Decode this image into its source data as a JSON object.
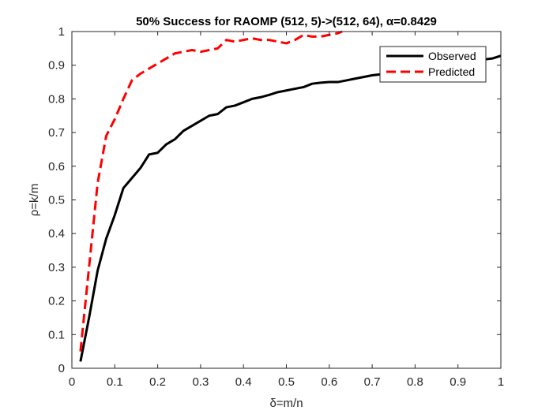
{
  "chart_data": {
    "type": "line",
    "title": "50% Success for RAOMP (512, 5)->(512, 64), α=0.8429",
    "xlabel": "δ=m/n",
    "ylabel": "ρ=k/m",
    "xlim": [
      0,
      1
    ],
    "ylim": [
      0,
      1
    ],
    "xticks": [
      0,
      0.1,
      0.2,
      0.3,
      0.4,
      0.5,
      0.6,
      0.7,
      0.8,
      0.9,
      1
    ],
    "yticks": [
      0,
      0.1,
      0.2,
      0.3,
      0.4,
      0.5,
      0.6,
      0.7,
      0.8,
      0.9,
      1
    ],
    "xtick_labels": [
      "0",
      "0.1",
      "0.2",
      "0.3",
      "0.4",
      "0.5",
      "0.6",
      "0.7",
      "0.8",
      "0.9",
      "1"
    ],
    "ytick_labels": [
      "0",
      "0.1",
      "0.2",
      "0.3",
      "0.4",
      "0.5",
      "0.6",
      "0.7",
      "0.8",
      "0.9",
      "1"
    ],
    "grid": false,
    "legend_position": "top-right",
    "series": [
      {
        "name": "Observed",
        "color": "#000000",
        "style": "solid",
        "x": [
          0.02,
          0.04,
          0.06,
          0.08,
          0.1,
          0.12,
          0.14,
          0.16,
          0.18,
          0.2,
          0.22,
          0.24,
          0.26,
          0.28,
          0.3,
          0.32,
          0.34,
          0.36,
          0.38,
          0.4,
          0.42,
          0.44,
          0.46,
          0.48,
          0.5,
          0.52,
          0.54,
          0.56,
          0.58,
          0.6,
          0.62,
          0.64,
          0.66,
          0.68,
          0.7,
          0.72,
          0.74,
          0.76,
          0.78,
          0.8,
          0.82,
          0.84,
          0.86,
          0.88,
          0.9,
          0.92,
          0.94,
          0.96,
          0.98,
          1.0
        ],
        "y": [
          0.02,
          0.15,
          0.29,
          0.385,
          0.455,
          0.535,
          0.565,
          0.595,
          0.635,
          0.64,
          0.665,
          0.68,
          0.705,
          0.72,
          0.735,
          0.75,
          0.755,
          0.775,
          0.78,
          0.79,
          0.8,
          0.805,
          0.812,
          0.82,
          0.825,
          0.83,
          0.835,
          0.845,
          0.848,
          0.85,
          0.85,
          0.855,
          0.86,
          0.865,
          0.87,
          0.873,
          0.877,
          0.88,
          0.884,
          0.888,
          0.891,
          0.895,
          0.898,
          0.901,
          0.905,
          0.908,
          0.912,
          0.917,
          0.92,
          0.928
        ]
      },
      {
        "name": "Predicted",
        "color": "#ff0000",
        "style": "dashed",
        "x": [
          0.02,
          0.04,
          0.06,
          0.08,
          0.1,
          0.12,
          0.14,
          0.16,
          0.18,
          0.2,
          0.22,
          0.24,
          0.26,
          0.28,
          0.3,
          0.32,
          0.34,
          0.36,
          0.38,
          0.4,
          0.42,
          0.44,
          0.46,
          0.48,
          0.5,
          0.52,
          0.54,
          0.56,
          0.58,
          0.6,
          0.62,
          0.63
        ],
        "y": [
          0.05,
          0.3,
          0.55,
          0.69,
          0.74,
          0.8,
          0.855,
          0.875,
          0.89,
          0.905,
          0.92,
          0.935,
          0.94,
          0.945,
          0.94,
          0.945,
          0.95,
          0.975,
          0.97,
          0.975,
          0.98,
          0.975,
          0.975,
          0.97,
          0.965,
          0.975,
          0.99,
          0.985,
          0.985,
          0.99,
          0.995,
          1.0
        ]
      }
    ]
  }
}
